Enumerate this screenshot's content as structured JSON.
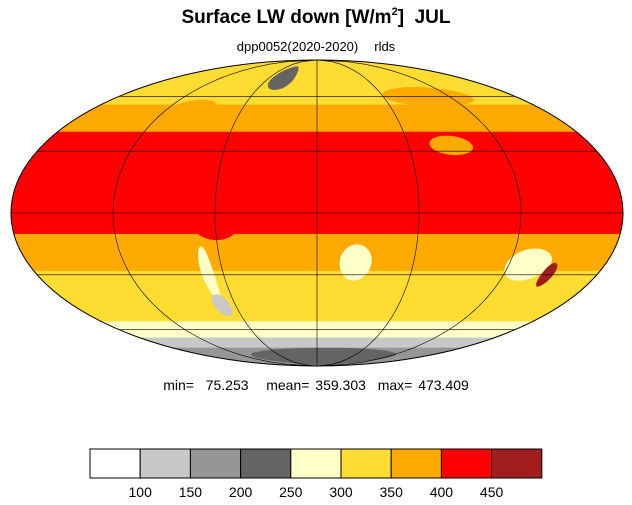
{
  "title": {
    "text": "Surface LW down [W/m",
    "superscript": "2",
    "close": "]",
    "month": "JUL"
  },
  "subtitle": {
    "experiment": "dpp0052(2020-2020)",
    "variable": "rlds"
  },
  "stats": {
    "min_label": "min=",
    "min": "75.253",
    "mean_label": "mean=",
    "mean": "359.303",
    "max_label": "max=",
    "max": "473.409"
  },
  "colorbar": {
    "colors": [
      "#ffffff",
      "#c8c8c8",
      "#969696",
      "#646464",
      "#ffffc8",
      "#ffdc32",
      "#ffaa00",
      "#ff0000",
      "#a01e1e"
    ],
    "tick_labels": [
      "100",
      "150",
      "200",
      "250",
      "300",
      "350",
      "400",
      "450"
    ]
  },
  "map": {
    "projection": "mollweide",
    "zonal_bands": [
      {
        "lat_from": 90,
        "lat_to": 72,
        "color": "#ffdc32"
      },
      {
        "lat_from": 72,
        "lat_to": 55,
        "color": "#ffdc32"
      },
      {
        "lat_from": 55,
        "lat_to": 40,
        "color": "#ffaa00"
      },
      {
        "lat_from": 40,
        "lat_to": -10,
        "color": "#ff0000"
      },
      {
        "lat_from": -10,
        "lat_to": -28,
        "color": "#ffaa00"
      },
      {
        "lat_from": -28,
        "lat_to": -55,
        "color": "#ffdc32"
      },
      {
        "lat_from": -55,
        "lat_to": -65,
        "color": "#ffffc8"
      },
      {
        "lat_from": -65,
        "lat_to": -72,
        "color": "#c8c8c8"
      },
      {
        "lat_from": -72,
        "lat_to": -90,
        "color": "#969696"
      }
    ],
    "patches": [
      {
        "name": "greenland",
        "lon": -42,
        "lat": 73,
        "dlon": 14,
        "dlat": 9,
        "color": "#646464"
      },
      {
        "name": "sahara",
        "lon": 12,
        "lat": 25,
        "dlon": 28,
        "dlat": 8,
        "color": "#ff0000"
      },
      {
        "name": "tibet",
        "lon": 88,
        "lat": 33,
        "dlon": 14,
        "dlat": 5,
        "color": "#ffaa00"
      },
      {
        "name": "southern-africa",
        "lon": 24,
        "lat": -24,
        "dlon": 10,
        "dlat": 9,
        "color": "#ffffc8"
      },
      {
        "name": "australia-interior",
        "lon": 132,
        "lat": -25,
        "dlon": 14,
        "dlat": 8,
        "color": "#ffffc8"
      },
      {
        "name": "andes-south",
        "lon": -70,
        "lat": -30,
        "dlon": 4,
        "dlat": 14,
        "color": "#ffffc8"
      },
      {
        "name": "patagonia",
        "lon": -70,
        "lat": -46,
        "dlon": 6,
        "dlat": 6,
        "color": "#c8c8c8"
      },
      {
        "name": "antarctica-east",
        "lon": 10,
        "lat": -80,
        "dlon": 120,
        "dlat": 8,
        "color": "#646464"
      },
      {
        "name": "north-asia",
        "lon": 100,
        "lat": 60,
        "dlon": 40,
        "dlat": 6,
        "color": "#ffaa00"
      },
      {
        "name": "north-america",
        "lon": -100,
        "lat": 50,
        "dlon": 22,
        "dlat": 8,
        "color": "#ffaa00"
      },
      {
        "name": "amazon",
        "lon": -60,
        "lat": -5,
        "dlon": 14,
        "dlat": 8,
        "color": "#ff0000"
      },
      {
        "name": "east-australia",
        "lon": 148,
        "lat": -30,
        "dlon": 4,
        "dlat": 6,
        "color": "#a01e1e"
      }
    ]
  }
}
